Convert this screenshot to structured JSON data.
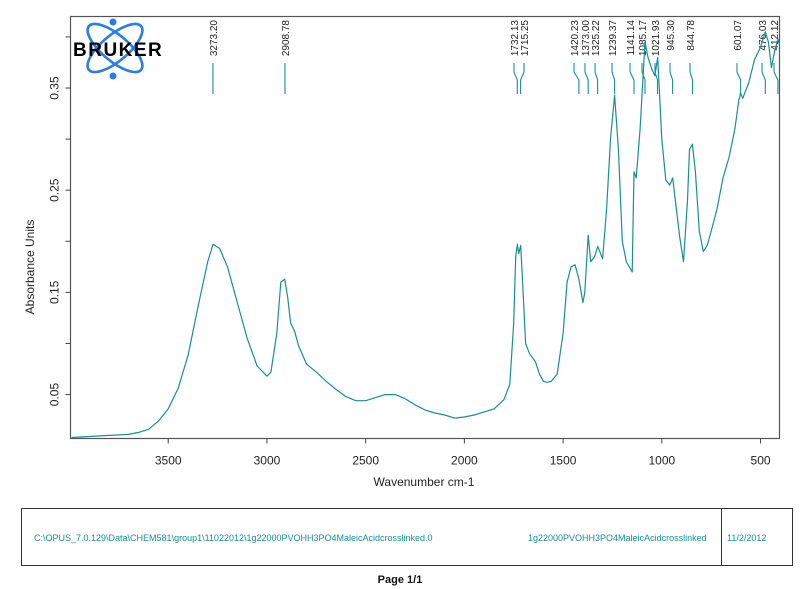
{
  "logo": {
    "text": "BRUKER"
  },
  "chart_data": {
    "type": "line",
    "title": "",
    "xlabel": "Wavenumber cm-1",
    "ylabel": "Absorbance Units",
    "xlim": [
      3995,
      404
    ],
    "ylim": [
      0.007,
      0.42
    ],
    "x_reversed": true,
    "grid": false,
    "legend": null,
    "xticks": [
      3500,
      3000,
      2500,
      2000,
      1500,
      1000,
      500
    ],
    "xtick_labels": [
      "3500",
      "3000",
      "2500",
      "2000",
      "1500",
      "1000",
      "500"
    ],
    "yticks_labeled": [
      0.05,
      0.15,
      0.25,
      0.35
    ],
    "ytick_labels": [
      "0.05",
      "0.15",
      "0.25",
      "0.35"
    ],
    "yticks_minor": [
      0.1,
      0.2,
      0.3,
      0.4
    ],
    "line_color": "#1a8f8f",
    "peak_labels": [
      "3273.20",
      "2908.78",
      "1732.13",
      "1715.25",
      "1420.23",
      "1373.00",
      "1325.22",
      "1239.37",
      "1141.14",
      "1085.17",
      "1021.93",
      "945.30",
      "844.78",
      "601.07",
      "476.03",
      "412.12"
    ],
    "peaks": [
      3273.2,
      2908.78,
      1732.13,
      1715.25,
      1420.23,
      1373.0,
      1325.22,
      1239.37,
      1141.14,
      1085.17,
      1021.93,
      945.3,
      844.78,
      601.07,
      476.03,
      412.12
    ],
    "series": [
      {
        "name": "1g22000PVOHH3PO4MaleicAcidcrosslinked",
        "x": [
          3990,
          3900,
          3800,
          3700,
          3650,
          3600,
          3550,
          3500,
          3450,
          3400,
          3350,
          3300,
          3273,
          3240,
          3200,
          3150,
          3100,
          3050,
          3000,
          2980,
          2950,
          2930,
          2910,
          2895,
          2880,
          2860,
          2840,
          2800,
          2750,
          2700,
          2650,
          2600,
          2550,
          2500,
          2450,
          2400,
          2350,
          2300,
          2250,
          2200,
          2150,
          2100,
          2050,
          2000,
          1950,
          1900,
          1850,
          1800,
          1770,
          1750,
          1740,
          1732,
          1725,
          1715,
          1705,
          1690,
          1670,
          1640,
          1620,
          1600,
          1580,
          1560,
          1530,
          1500,
          1480,
          1460,
          1440,
          1420,
          1400,
          1390,
          1373,
          1360,
          1340,
          1325,
          1300,
          1280,
          1260,
          1239,
          1220,
          1200,
          1180,
          1165,
          1150,
          1141,
          1130,
          1110,
          1085,
          1070,
          1050,
          1035,
          1021,
          1000,
          980,
          960,
          945,
          930,
          910,
          890,
          870,
          860,
          845,
          830,
          810,
          790,
          770,
          750,
          720,
          690,
          660,
          630,
          610,
          601,
          590,
          560,
          530,
          500,
          476,
          460,
          445,
          430,
          412,
          404
        ],
        "values": [
          0.008,
          0.009,
          0.01,
          0.011,
          0.013,
          0.016,
          0.024,
          0.036,
          0.056,
          0.088,
          0.135,
          0.18,
          0.197,
          0.193,
          0.175,
          0.14,
          0.105,
          0.078,
          0.068,
          0.072,
          0.11,
          0.16,
          0.163,
          0.145,
          0.12,
          0.112,
          0.098,
          0.08,
          0.072,
          0.063,
          0.055,
          0.048,
          0.044,
          0.044,
          0.047,
          0.05,
          0.05,
          0.046,
          0.04,
          0.035,
          0.032,
          0.03,
          0.027,
          0.028,
          0.03,
          0.033,
          0.036,
          0.045,
          0.06,
          0.12,
          0.185,
          0.197,
          0.188,
          0.196,
          0.16,
          0.1,
          0.09,
          0.082,
          0.07,
          0.063,
          0.062,
          0.063,
          0.07,
          0.11,
          0.16,
          0.175,
          0.177,
          0.163,
          0.14,
          0.15,
          0.206,
          0.18,
          0.185,
          0.195,
          0.183,
          0.23,
          0.3,
          0.343,
          0.29,
          0.2,
          0.18,
          0.175,
          0.17,
          0.268,
          0.262,
          0.31,
          0.395,
          0.38,
          0.368,
          0.362,
          0.38,
          0.3,
          0.26,
          0.255,
          0.262,
          0.238,
          0.205,
          0.18,
          0.24,
          0.29,
          0.295,
          0.268,
          0.21,
          0.19,
          0.196,
          0.21,
          0.232,
          0.262,
          0.282,
          0.31,
          0.338,
          0.345,
          0.34,
          0.355,
          0.378,
          0.39,
          0.405,
          0.395,
          0.37,
          0.385,
          0.398,
          0.392
        ]
      }
    ]
  },
  "footer": {
    "file_path": "C:\\OPUS_7.0.129\\Data\\CHEM581\\group1\\11022012\\1g22000PVOHH3PO4MaleicAcidcrosslinked.0",
    "sample_name": "1g22000PVOHH3PO4MaleicAcidcrosslinked",
    "date": "11/2/2012"
  },
  "page": {
    "label": "Page 1/1"
  }
}
